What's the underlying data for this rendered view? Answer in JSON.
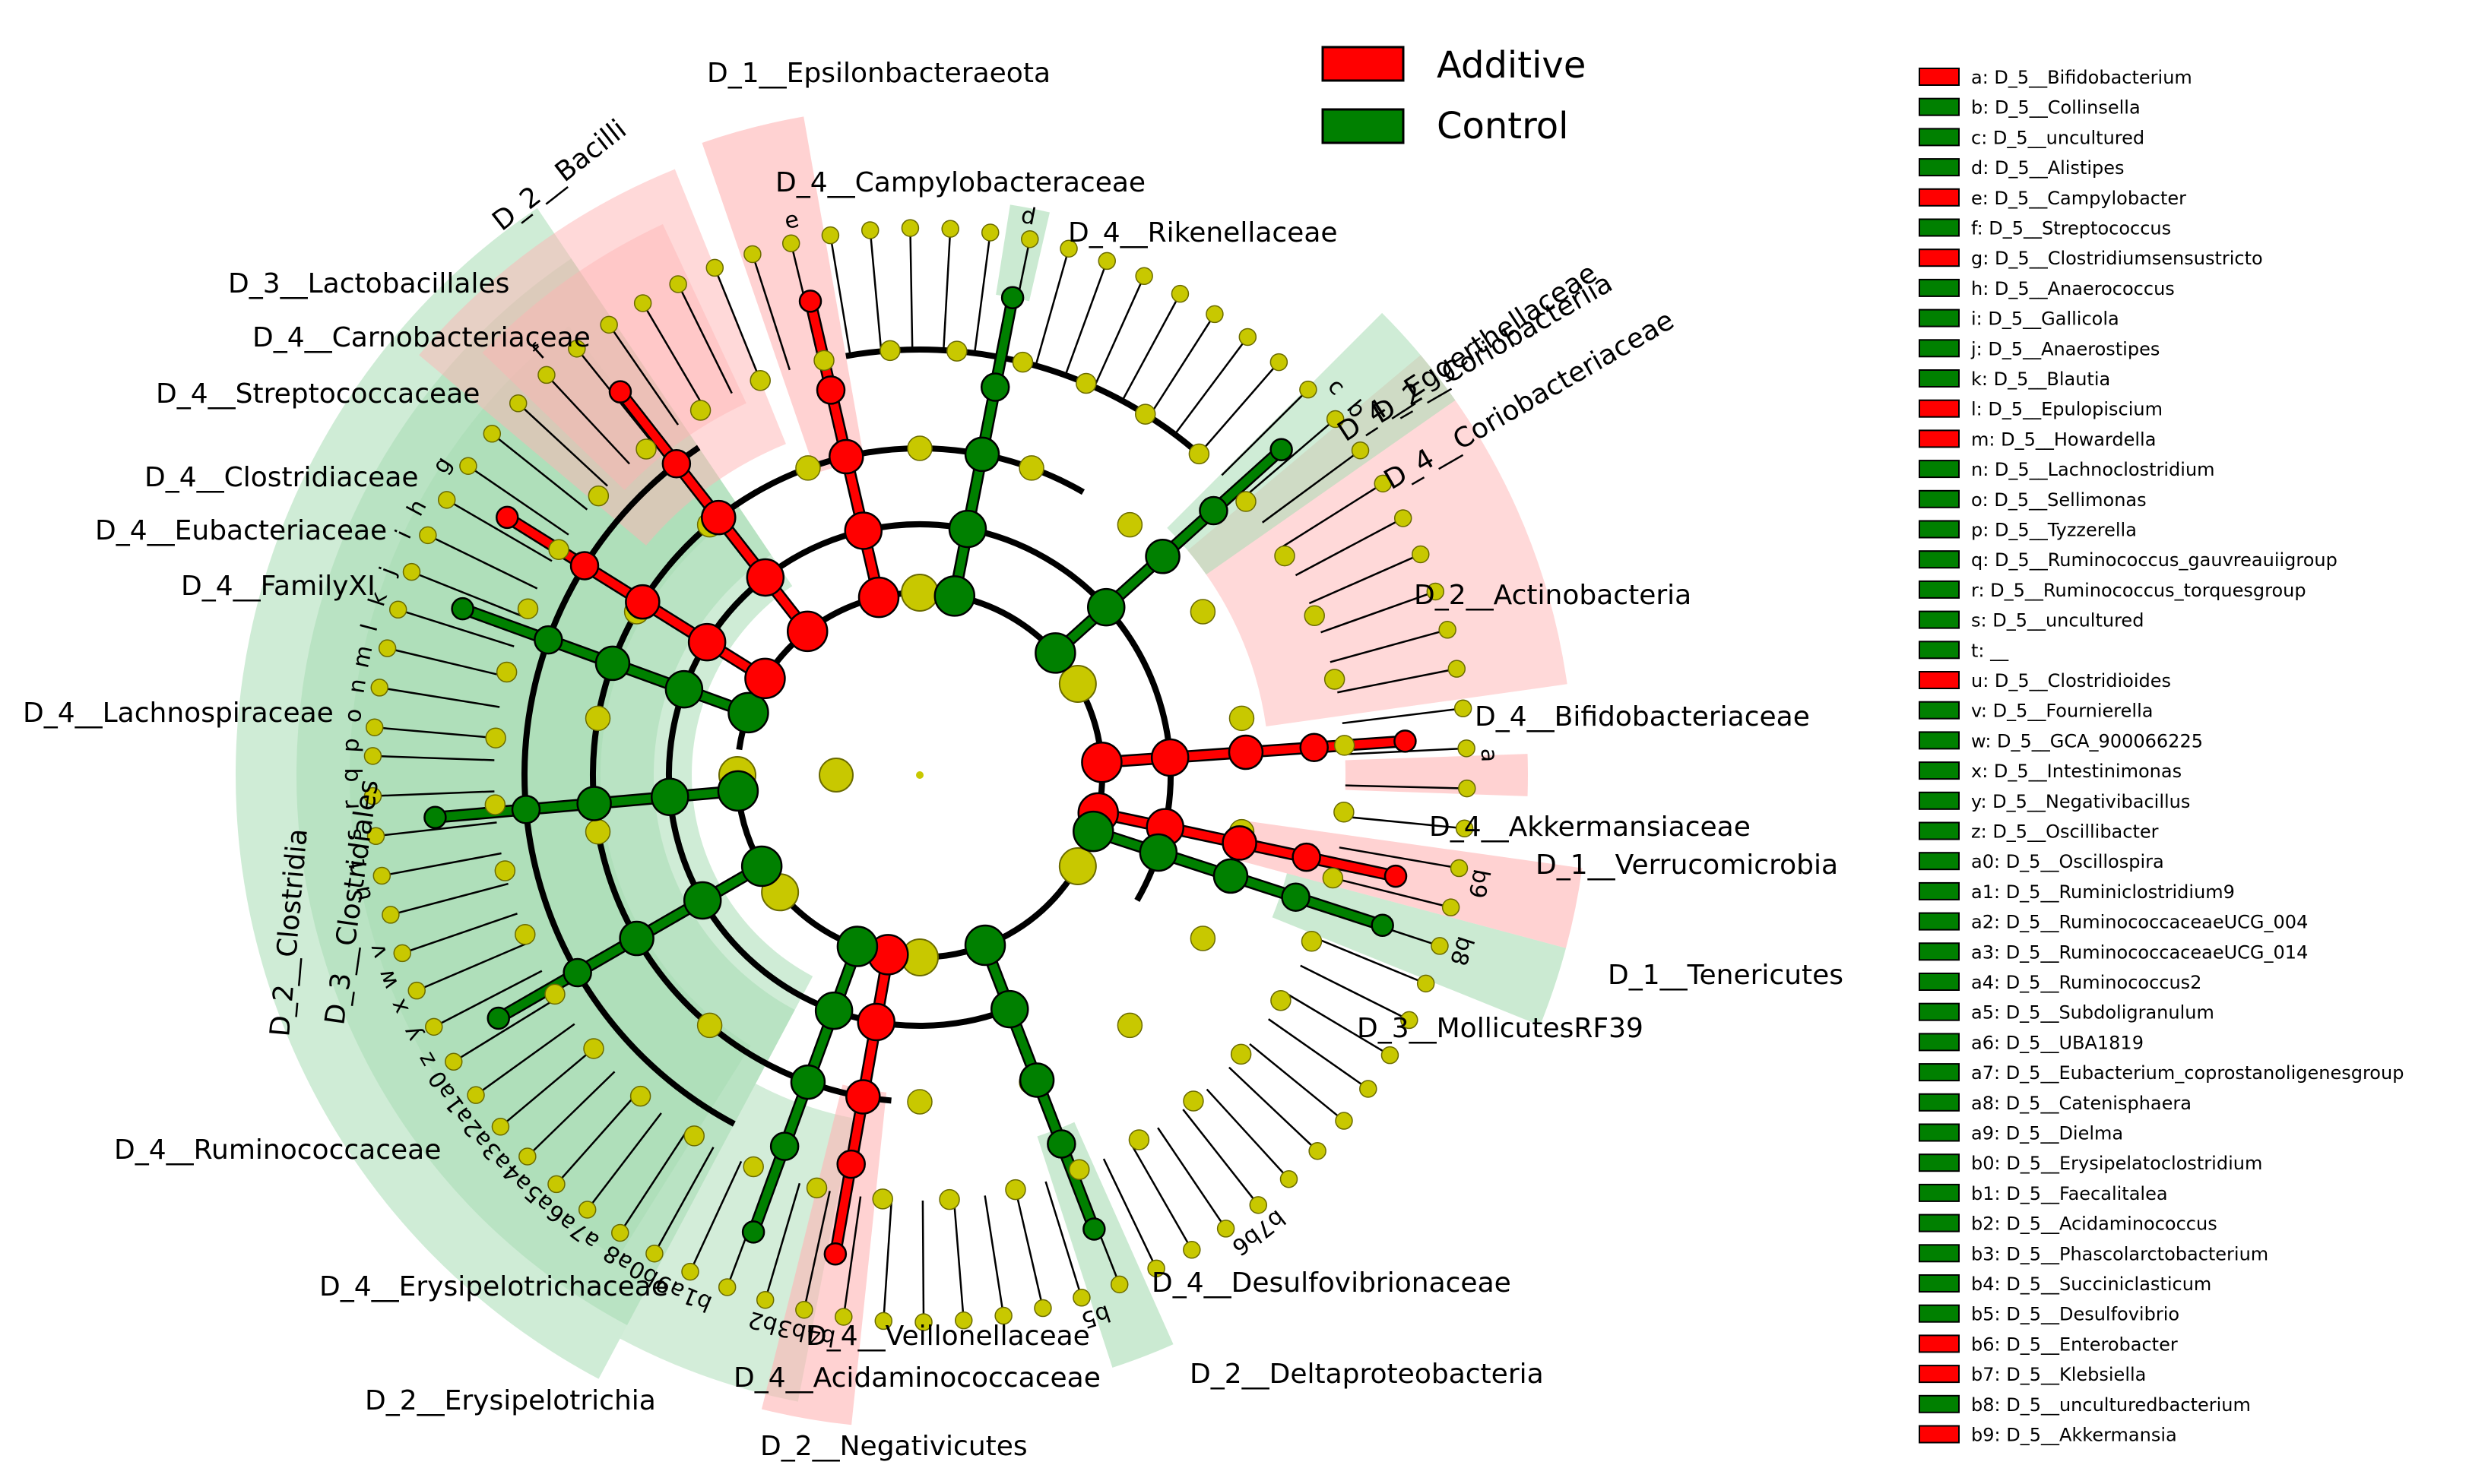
{
  "legend": {
    "groups": [
      {
        "name": "Additive",
        "color": "#ff0000"
      },
      {
        "name": "Control",
        "color": "#008000"
      }
    ]
  },
  "colors": {
    "additive": "#ff0000",
    "control": "#008000",
    "node": "#c8c800",
    "additive_shade": "#ffb4b4",
    "control_shade": "#a8dcb4"
  },
  "taxa": [
    {
      "label": "D_1__Epsilonbacteraeota",
      "group": "additive"
    },
    {
      "label": "D_4__Campylobacteraceae",
      "group": "additive"
    },
    {
      "label": "D_4__Rikenellaceae",
      "group": "control"
    },
    {
      "label": "D_2__Bacilli",
      "group": "additive"
    },
    {
      "label": "D_3__Lactobacillales",
      "group": "additive"
    },
    {
      "label": "D_4__Carnobacteriaceae",
      "group": "additive"
    },
    {
      "label": "D_4__Streptococcaceae",
      "group": "control"
    },
    {
      "label": "D_4__Clostridiaceae",
      "group": "additive"
    },
    {
      "label": "D_4__Eubacteriaceae",
      "group": "control"
    },
    {
      "label": "D_4__FamilyXI",
      "group": "control"
    },
    {
      "label": "D_4__Lachnospiraceae",
      "group": "control"
    },
    {
      "label": "D_2__Clostridia",
      "group": "control"
    },
    {
      "label": "D_3__Clostridiales",
      "group": "control"
    },
    {
      "label": "D_4__Ruminococcaceae",
      "group": "control"
    },
    {
      "label": "D_4__Erysipelotrichaceae",
      "group": "control"
    },
    {
      "label": "D_2__Erysipelotrichia",
      "group": "control"
    },
    {
      "label": "D_4__Veillonellaceae",
      "group": "additive"
    },
    {
      "label": "D_4__Acidaminococcaceae",
      "group": "control"
    },
    {
      "label": "D_2__Negativicutes",
      "group": "additive"
    },
    {
      "label": "D_4__Desulfovibrionaceae",
      "group": "control"
    },
    {
      "label": "D_2__Deltaproteobacteria",
      "group": "control"
    },
    {
      "label": "D_3__MollicutesRF39",
      "group": "control"
    },
    {
      "label": "D_1__Tenericutes",
      "group": "control"
    },
    {
      "label": "D_4__Akkermansiaceae",
      "group": "additive"
    },
    {
      "label": "D_1__Verrucomicrobia",
      "group": "additive"
    },
    {
      "label": "D_4__Bifidobacteriaceae",
      "group": "additive"
    },
    {
      "label": "D_2__Actinobacteria",
      "group": "additive"
    },
    {
      "label": "D_4__Eggerthellaceae",
      "group": "control"
    },
    {
      "label": "D_2__Coriobacteriia",
      "group": "control"
    },
    {
      "label": "D_4__Coriobacteriaceae",
      "group": "control"
    }
  ],
  "key": [
    {
      "code": "a",
      "name": "D_5__Bifidobacterium",
      "group": "additive"
    },
    {
      "code": "b",
      "name": "D_5__Collinsella",
      "group": "control"
    },
    {
      "code": "c",
      "name": "D_5__uncultured",
      "group": "control"
    },
    {
      "code": "d",
      "name": "D_5__Alistipes",
      "group": "control"
    },
    {
      "code": "e",
      "name": "D_5__Campylobacter",
      "group": "additive"
    },
    {
      "code": "f",
      "name": "D_5__Streptococcus",
      "group": "control"
    },
    {
      "code": "g",
      "name": "D_5__Clostridiumsensustricto",
      "group": "additive"
    },
    {
      "code": "h",
      "name": "D_5__Anaerococcus",
      "group": "control"
    },
    {
      "code": "i",
      "name": "D_5__Gallicola",
      "group": "control"
    },
    {
      "code": "j",
      "name": "D_5__Anaerostipes",
      "group": "control"
    },
    {
      "code": "k",
      "name": "D_5__Blautia",
      "group": "control"
    },
    {
      "code": "l",
      "name": "D_5__Epulopiscium",
      "group": "additive"
    },
    {
      "code": "m",
      "name": "D_5__Howardella",
      "group": "additive"
    },
    {
      "code": "n",
      "name": "D_5__Lachnoclostridium",
      "group": "control"
    },
    {
      "code": "o",
      "name": "D_5__Sellimonas",
      "group": "control"
    },
    {
      "code": "p",
      "name": "D_5__Tyzzerella",
      "group": "control"
    },
    {
      "code": "q",
      "name": "D_5__Ruminococcus_gauvreauiigroup",
      "group": "control"
    },
    {
      "code": "r",
      "name": "D_5__Ruminococcus_torquesgroup",
      "group": "control"
    },
    {
      "code": "s",
      "name": "D_5__uncultured",
      "group": "control"
    },
    {
      "code": "t",
      "name": "__",
      "group": "control"
    },
    {
      "code": "u",
      "name": "D_5__Clostridioides",
      "group": "additive"
    },
    {
      "code": "v",
      "name": "D_5__Fournierella",
      "group": "control"
    },
    {
      "code": "w",
      "name": "D_5__GCA_900066225",
      "group": "control"
    },
    {
      "code": "x",
      "name": "D_5__Intestinimonas",
      "group": "control"
    },
    {
      "code": "y",
      "name": "D_5__Negativibacillus",
      "group": "control"
    },
    {
      "code": "z",
      "name": "D_5__Oscillibacter",
      "group": "control"
    },
    {
      "code": "a0",
      "name": "D_5__Oscillospira",
      "group": "control"
    },
    {
      "code": "a1",
      "name": "D_5__Ruminiclostridium9",
      "group": "control"
    },
    {
      "code": "a2",
      "name": "D_5__RuminococcaceaeUCG_004",
      "group": "control"
    },
    {
      "code": "a3",
      "name": "D_5__RuminococcaceaeUCG_014",
      "group": "control"
    },
    {
      "code": "a4",
      "name": "D_5__Ruminococcus2",
      "group": "control"
    },
    {
      "code": "a5",
      "name": "D_5__Subdoligranulum",
      "group": "control"
    },
    {
      "code": "a6",
      "name": "D_5__UBA1819",
      "group": "control"
    },
    {
      "code": "a7",
      "name": "D_5__Eubacterium_coprostanoligenesgroup",
      "group": "control"
    },
    {
      "code": "a8",
      "name": "D_5__Catenisphaera",
      "group": "control"
    },
    {
      "code": "a9",
      "name": "D_5__Dielma",
      "group": "control"
    },
    {
      "code": "b0",
      "name": "D_5__Erysipelatoclostridium",
      "group": "control"
    },
    {
      "code": "b1",
      "name": "D_5__Faecalitalea",
      "group": "control"
    },
    {
      "code": "b2",
      "name": "D_5__Acidaminococcus",
      "group": "control"
    },
    {
      "code": "b3",
      "name": "D_5__Phascolarctobacterium",
      "group": "control"
    },
    {
      "code": "b4",
      "name": "D_5__Succiniclasticum",
      "group": "control"
    },
    {
      "code": "b5",
      "name": "D_5__Desulfovibrio",
      "group": "control"
    },
    {
      "code": "b6",
      "name": "D_5__Enterobacter",
      "group": "additive"
    },
    {
      "code": "b7",
      "name": "D_5__Klebsiella",
      "group": "additive"
    },
    {
      "code": "b8",
      "name": "D_5__unculturedbacterium",
      "group": "control"
    },
    {
      "code": "b9",
      "name": "D_5__Akkermansia",
      "group": "additive"
    }
  ],
  "leaf_codes": {
    "top_right_1": "d",
    "top_right_2": "e",
    "actino": "a",
    "akk": "b9",
    "tener": "b8",
    "entero": "b7",
    "entero2": "b6",
    "desulfo": "b5",
    "neg": "b4",
    "neg2": "b3",
    "neg3": "b2",
    "rumA": "a9",
    "rumB": "b0",
    "rumC": "b1",
    "rumD": "a8",
    "rumE": "a7",
    "rumF": "a6",
    "rumG": "a5",
    "rumH": "a4",
    "rumI": "a3",
    "rumJ": "a2",
    "rumK": "a1",
    "rumL": "a0",
    "rumM": "z",
    "rumN": "y",
    "rumO": "x",
    "rumP": "w",
    "rumQ": "v",
    "lachA": "u",
    "lachB": "t",
    "lachC": "s",
    "lachD": "r",
    "lachE": "q",
    "lachF": "p",
    "lachG": "o",
    "lachH": "n",
    "lachI": "m",
    "lachJ": "l",
    "lachK": "k",
    "lachL": "j",
    "famA": "i",
    "famB": "h",
    "clos": "g",
    "strep": "f",
    "corio1": "c",
    "corio2": "b"
  }
}
